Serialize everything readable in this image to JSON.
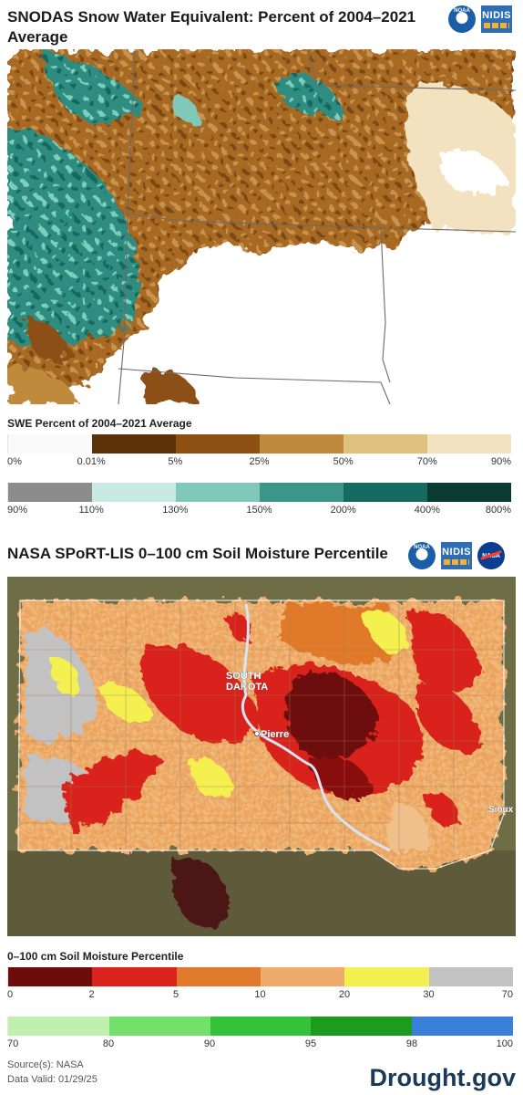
{
  "panel1": {
    "title": "SNODAS Snow Water Equivalent: Percent of 2004–2021 Average",
    "legend_title": "SWE Percent of 2004–2021 Average",
    "logos": [
      "NOAA",
      "NIDIS"
    ],
    "scale_row1": {
      "colors": [
        "#fafafa",
        "#5c3209",
        "#8c5012",
        "#c08a3c",
        "#dfc07c",
        "#f2e2bf"
      ],
      "labels": [
        "0%",
        "0.01%",
        "5%",
        "25%",
        "50%",
        "70%",
        "90%"
      ]
    },
    "scale_row2": {
      "colors": [
        "#8c8c8c",
        "#c9e9e3",
        "#80c9ba",
        "#3a9688",
        "#156b5f",
        "#0a3b31"
      ],
      "labels": [
        "90%",
        "110%",
        "130%",
        "150%",
        "200%",
        "400%",
        "800%"
      ]
    }
  },
  "panel2": {
    "title": "NASA SPoRT-LIS 0–100 cm Soil Moisture Percentile",
    "legend_title": "0–100 cm Soil Moisture Percentile",
    "logos": [
      "NOAA",
      "NIDIS",
      "NASA"
    ],
    "map_labels": {
      "state": "SOUTH\nDAKOTA",
      "state_line1": "SOUTH",
      "state_line2": "DAKOTA",
      "capital": "Pierre",
      "city": "Sioux"
    },
    "scale_row1": {
      "colors": [
        "#6e0b0b",
        "#d9231c",
        "#e07a2c",
        "#eeab6b",
        "#f4f04f",
        "#c2c2c2"
      ],
      "labels": [
        "0",
        "2",
        "5",
        "10",
        "20",
        "30",
        "70"
      ]
    },
    "scale_row2": {
      "colors": [
        "#bff0ae",
        "#72e06b",
        "#33c23a",
        "#1c9b1f",
        "#3a7fda"
      ],
      "labels": [
        "70",
        "80",
        "90",
        "95",
        "98",
        "100"
      ]
    }
  },
  "footer": {
    "source": "Source(s): NASA",
    "valid": "Data Valid: 01/29/25",
    "brand": "Drought.gov"
  }
}
